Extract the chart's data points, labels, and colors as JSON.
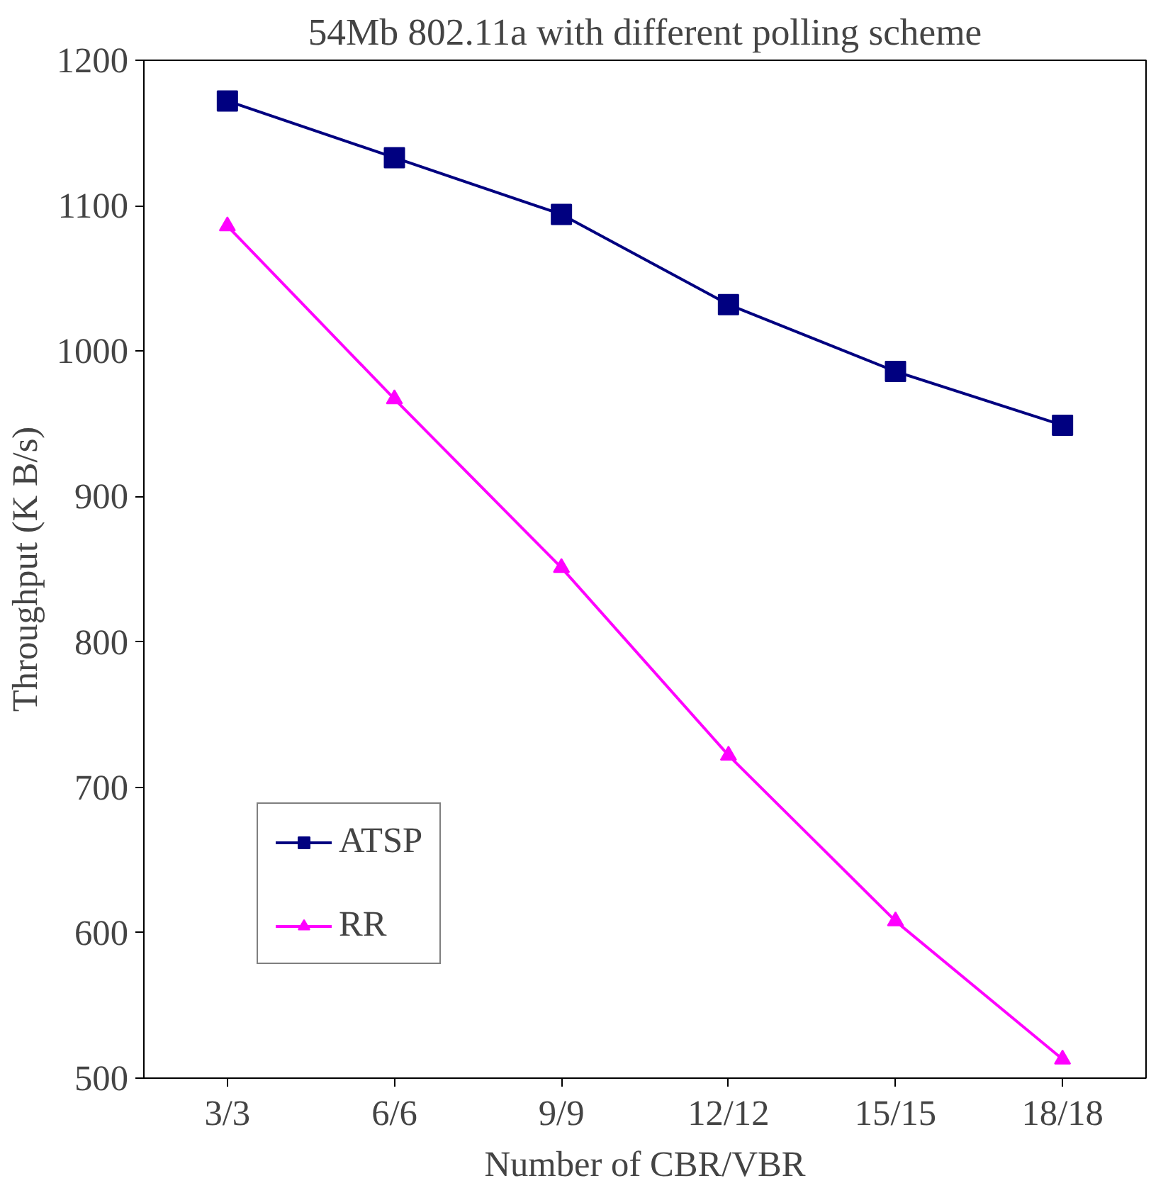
{
  "chart_data": {
    "type": "line",
    "title": "54Mb 802.11a with different polling scheme",
    "xlabel": "Number of CBR/VBR",
    "ylabel": "Throughput (K B/s)",
    "categories": [
      "3/3",
      "6/6",
      "9/9",
      "12/12",
      "15/15",
      "18/18"
    ],
    "series": [
      {
        "name": "ATSP",
        "color": "#000080",
        "marker": "square",
        "values": [
          1172,
          1133,
          1094,
          1032,
          986,
          949
        ]
      },
      {
        "name": "RR",
        "color": "#ff00ff",
        "marker": "triangle",
        "values": [
          1086,
          967,
          851,
          722,
          608,
          513
        ]
      }
    ],
    "ylim": [
      500,
      1200
    ],
    "yticks": [
      500,
      600,
      700,
      800,
      900,
      1000,
      1100,
      1200
    ],
    "grid": false,
    "legend": "bottom left"
  }
}
